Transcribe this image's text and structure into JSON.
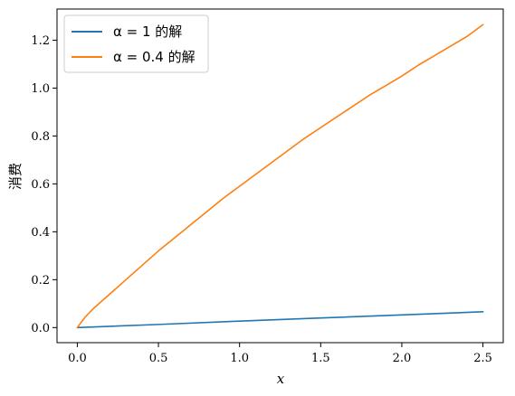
{
  "chart_data": {
    "type": "line",
    "title": "",
    "xlabel": "x",
    "ylabel": "消费",
    "xlim": [
      -0.125,
      2.625
    ],
    "ylim": [
      -0.063,
      1.33
    ],
    "xticks": [
      0.0,
      0.5,
      1.0,
      1.5,
      2.0,
      2.5
    ],
    "xtick_labels": [
      "0.0",
      "0.5",
      "1.0",
      "1.5",
      "2.0",
      "2.5"
    ],
    "yticks": [
      0.0,
      0.2,
      0.4,
      0.6,
      0.8,
      1.0,
      1.2
    ],
    "ytick_labels": [
      "0.0",
      "0.2",
      "0.4",
      "0.6",
      "0.8",
      "1.0",
      "1.2"
    ],
    "grid": false,
    "legend_position": "top-left",
    "series": [
      {
        "name": "α = 1 的解",
        "color": "#1f77b4",
        "x": [
          0.0,
          0.5,
          1.0,
          1.5,
          2.0,
          2.5
        ],
        "y": [
          0.0,
          0.013,
          0.027,
          0.04,
          0.053,
          0.066
        ]
      },
      {
        "name": "α = 0.4 的解",
        "color": "#ff7f0e",
        "x": [
          0.0,
          0.05,
          0.1,
          0.2,
          0.3,
          0.4,
          0.5,
          0.6,
          0.7,
          0.8,
          0.9,
          1.0,
          1.1,
          1.2,
          1.3,
          1.4,
          1.5,
          1.6,
          1.7,
          1.8,
          1.9,
          2.0,
          2.1,
          2.2,
          2.3,
          2.4,
          2.5
        ],
        "y": [
          0.0,
          0.045,
          0.08,
          0.14,
          0.2,
          0.26,
          0.32,
          0.375,
          0.43,
          0.485,
          0.54,
          0.59,
          0.64,
          0.69,
          0.74,
          0.79,
          0.835,
          0.88,
          0.925,
          0.97,
          1.01,
          1.05,
          1.095,
          1.135,
          1.175,
          1.215,
          1.265
        ]
      }
    ]
  }
}
